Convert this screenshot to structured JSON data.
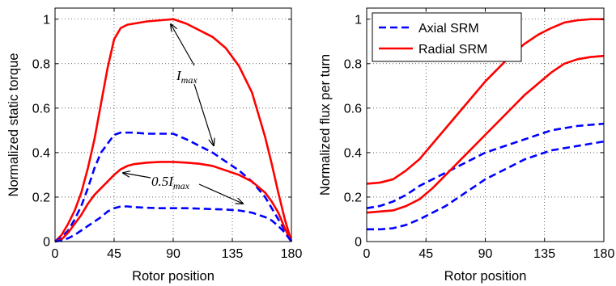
{
  "colors": {
    "axial": "#0000ff",
    "radial": "#ff0000"
  },
  "annotations": {
    "imax": {
      "main": "I",
      "sub": "max"
    },
    "half_imax": {
      "prefix": "0.5",
      "main": "I",
      "sub": "max"
    }
  },
  "chart_data": [
    {
      "type": "line",
      "xlabel": "Rotor position",
      "ylabel": "Normalized static torque",
      "xlim": [
        0,
        180
      ],
      "ylim": [
        0,
        1.05
      ],
      "xticks": [
        0,
        45,
        90,
        135,
        180
      ],
      "yticks": [
        0,
        0.2,
        0.4,
        0.6,
        0.8,
        1
      ],
      "xtick_labels": [
        "0",
        "45",
        "90",
        "135",
        "180"
      ],
      "ytick_labels": [
        "0",
        "0.2",
        "0.4",
        "0.6",
        "0.8",
        "1"
      ],
      "grid": true,
      "series": [
        {
          "group": "radial",
          "style": "solid",
          "x": [
            0,
            5,
            10,
            15,
            20,
            25,
            30,
            35,
            40,
            45,
            50,
            55,
            60,
            70,
            80,
            90,
            100,
            110,
            120,
            130,
            140,
            150,
            160,
            165,
            170,
            175,
            180
          ],
          "y": [
            0,
            0.03,
            0.08,
            0.14,
            0.22,
            0.33,
            0.46,
            0.62,
            0.78,
            0.91,
            0.96,
            0.975,
            0.98,
            0.99,
            0.995,
            1.0,
            0.98,
            0.95,
            0.92,
            0.87,
            0.79,
            0.67,
            0.47,
            0.35,
            0.22,
            0.1,
            0
          ]
        },
        {
          "group": "axial",
          "style": "dashed",
          "x": [
            0,
            5,
            10,
            15,
            20,
            25,
            30,
            35,
            40,
            45,
            50,
            55,
            60,
            70,
            80,
            90,
            100,
            110,
            120,
            130,
            140,
            150,
            160,
            165,
            170,
            175,
            180
          ],
          "y": [
            0,
            0.02,
            0.05,
            0.1,
            0.16,
            0.24,
            0.33,
            0.4,
            0.44,
            0.48,
            0.49,
            0.49,
            0.49,
            0.485,
            0.485,
            0.485,
            0.46,
            0.43,
            0.4,
            0.36,
            0.32,
            0.27,
            0.2,
            0.15,
            0.1,
            0.05,
            0
          ]
        },
        {
          "group": "radial",
          "style": "solid",
          "x": [
            0,
            5,
            10,
            15,
            20,
            25,
            30,
            35,
            40,
            45,
            50,
            55,
            60,
            70,
            80,
            90,
            100,
            110,
            120,
            130,
            140,
            150,
            160,
            165,
            170,
            175,
            180
          ],
          "y": [
            0,
            0.01,
            0.04,
            0.08,
            0.12,
            0.17,
            0.21,
            0.24,
            0.27,
            0.3,
            0.325,
            0.34,
            0.348,
            0.355,
            0.358,
            0.358,
            0.355,
            0.35,
            0.34,
            0.32,
            0.3,
            0.27,
            0.22,
            0.18,
            0.13,
            0.06,
            0
          ]
        },
        {
          "group": "axial",
          "style": "dashed",
          "x": [
            0,
            5,
            10,
            15,
            20,
            25,
            30,
            35,
            40,
            45,
            50,
            55,
            60,
            70,
            80,
            90,
            100,
            110,
            120,
            130,
            140,
            150,
            160,
            165,
            170,
            175,
            180
          ],
          "y": [
            0,
            0.005,
            0.015,
            0.03,
            0.05,
            0.07,
            0.09,
            0.11,
            0.135,
            0.15,
            0.158,
            0.158,
            0.155,
            0.152,
            0.15,
            0.15,
            0.15,
            0.148,
            0.146,
            0.144,
            0.14,
            0.13,
            0.11,
            0.095,
            0.07,
            0.04,
            0
          ]
        }
      ]
    },
    {
      "type": "line",
      "xlabel": "Rotor position",
      "ylabel": "Normalized flux per turn",
      "xlim": [
        0,
        180
      ],
      "ylim": [
        0,
        1.05
      ],
      "xticks": [
        0,
        45,
        90,
        135,
        180
      ],
      "yticks": [
        0,
        0.2,
        0.4,
        0.6,
        0.8,
        1
      ],
      "xtick_labels": [
        "0",
        "45",
        "90",
        "135",
        "180"
      ],
      "ytick_labels": [
        "0",
        "0.2",
        "0.4",
        "0.6",
        "0.8",
        "1"
      ],
      "grid": true,
      "legend": {
        "position": "top-left",
        "entries": [
          {
            "label": "Axial SRM",
            "group": "axial",
            "style": "dashed"
          },
          {
            "label": "Radial SRM",
            "group": "radial",
            "style": "solid"
          }
        ]
      },
      "series": [
        {
          "name": "Radial SRM",
          "group": "radial",
          "style": "solid",
          "x": [
            0,
            10,
            20,
            30,
            40,
            50,
            60,
            70,
            80,
            90,
            100,
            110,
            120,
            130,
            140,
            150,
            160,
            170,
            180
          ],
          "y": [
            0.26,
            0.265,
            0.28,
            0.32,
            0.37,
            0.44,
            0.51,
            0.58,
            0.65,
            0.72,
            0.78,
            0.84,
            0.89,
            0.93,
            0.96,
            0.985,
            0.995,
            1.0,
            1.0
          ]
        },
        {
          "name": "Axial SRM",
          "group": "axial",
          "style": "dashed",
          "x": [
            0,
            10,
            20,
            30,
            40,
            50,
            60,
            70,
            80,
            90,
            100,
            110,
            120,
            130,
            140,
            150,
            160,
            170,
            180
          ],
          "y": [
            0.15,
            0.16,
            0.18,
            0.21,
            0.25,
            0.28,
            0.31,
            0.34,
            0.37,
            0.4,
            0.42,
            0.44,
            0.46,
            0.48,
            0.5,
            0.51,
            0.52,
            0.525,
            0.53
          ]
        },
        {
          "group": "radial",
          "style": "solid",
          "x": [
            0,
            10,
            20,
            30,
            40,
            50,
            60,
            70,
            80,
            90,
            100,
            110,
            120,
            130,
            140,
            150,
            160,
            170,
            180
          ],
          "y": [
            0.13,
            0.135,
            0.14,
            0.16,
            0.19,
            0.24,
            0.3,
            0.36,
            0.42,
            0.48,
            0.54,
            0.6,
            0.66,
            0.71,
            0.76,
            0.8,
            0.82,
            0.83,
            0.835
          ]
        },
        {
          "group": "axial",
          "style": "dashed",
          "x": [
            0,
            10,
            20,
            30,
            40,
            50,
            60,
            70,
            80,
            90,
            100,
            110,
            120,
            130,
            140,
            150,
            160,
            170,
            180
          ],
          "y": [
            0.055,
            0.055,
            0.06,
            0.075,
            0.1,
            0.13,
            0.16,
            0.2,
            0.24,
            0.28,
            0.31,
            0.34,
            0.37,
            0.39,
            0.41,
            0.42,
            0.43,
            0.44,
            0.45
          ]
        }
      ]
    }
  ]
}
